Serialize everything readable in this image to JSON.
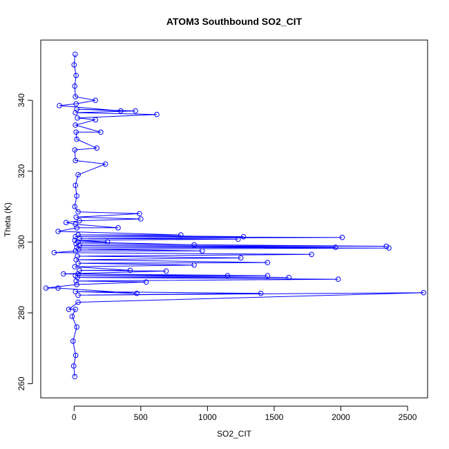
{
  "chart_data": {
    "type": "scatter",
    "title": "ATOM3 Southbound SO2_CIT",
    "xlabel": "SO2_CIT",
    "ylabel": "Theta (K)",
    "xlim": [
      -250,
      2650
    ],
    "ylim": [
      256,
      357
    ],
    "x_ticks": [
      0,
      500,
      1000,
      1500,
      2000,
      2500
    ],
    "y_ticks": [
      260,
      280,
      300,
      320,
      340
    ],
    "grid": false,
    "legend": "none",
    "series_color": "#0000ff",
    "marker": "open-circle",
    "connected": true,
    "points": [
      {
        "x": 5,
        "y": 262
      },
      {
        "x": -3,
        "y": 265
      },
      {
        "x": 12,
        "y": 268
      },
      {
        "x": -8,
        "y": 272
      },
      {
        "x": 20,
        "y": 276
      },
      {
        "x": -15,
        "y": 279
      },
      {
        "x": 10,
        "y": 281
      },
      {
        "x": -40,
        "y": 281
      },
      {
        "x": 30,
        "y": 283
      },
      {
        "x": 2620,
        "y": 285.7
      },
      {
        "x": 30,
        "y": 285
      },
      {
        "x": 1400,
        "y": 285.5
      },
      {
        "x": 10,
        "y": 286
      },
      {
        "x": 470,
        "y": 285.5
      },
      {
        "x": -120,
        "y": 287
      },
      {
        "x": -210,
        "y": 287
      },
      {
        "x": 20,
        "y": 288
      },
      {
        "x": 540,
        "y": 288.7
      },
      {
        "x": 15,
        "y": 289
      },
      {
        "x": 1980,
        "y": 289.5
      },
      {
        "x": 25,
        "y": 290
      },
      {
        "x": 1610,
        "y": 290
      },
      {
        "x": 10,
        "y": 290.5
      },
      {
        "x": 1450,
        "y": 290.5
      },
      {
        "x": 30,
        "y": 291
      },
      {
        "x": 1150,
        "y": 290.5
      },
      {
        "x": -80,
        "y": 291
      },
      {
        "x": 690,
        "y": 291.8
      },
      {
        "x": 40,
        "y": 292
      },
      {
        "x": 420,
        "y": 292
      },
      {
        "x": 5,
        "y": 293
      },
      {
        "x": 900,
        "y": 293.5
      },
      {
        "x": 30,
        "y": 294
      },
      {
        "x": 1450,
        "y": 294.2
      },
      {
        "x": 15,
        "y": 295
      },
      {
        "x": 1250,
        "y": 295.5
      },
      {
        "x": 25,
        "y": 296
      },
      {
        "x": 1780,
        "y": 296.5
      },
      {
        "x": -150,
        "y": 297
      },
      {
        "x": 10,
        "y": 297.5
      },
      {
        "x": 960,
        "y": 297.5
      },
      {
        "x": 35,
        "y": 298
      },
      {
        "x": 2360,
        "y": 298.3
      },
      {
        "x": 20,
        "y": 298.5
      },
      {
        "x": 1960,
        "y": 298.5
      },
      {
        "x": 40,
        "y": 299
      },
      {
        "x": 2340,
        "y": 298.8
      },
      {
        "x": 15,
        "y": 299.5
      },
      {
        "x": 900,
        "y": 299.2
      },
      {
        "x": 30,
        "y": 300
      },
      {
        "x": 250,
        "y": 300
      },
      {
        "x": 5,
        "y": 300.5
      },
      {
        "x": 1230,
        "y": 300.8
      },
      {
        "x": 40,
        "y": 301
      },
      {
        "x": 2010,
        "y": 301.3
      },
      {
        "x": 10,
        "y": 301.5
      },
      {
        "x": 1270,
        "y": 301.5
      },
      {
        "x": 30,
        "y": 302
      },
      {
        "x": 800,
        "y": 302
      },
      {
        "x": -120,
        "y": 303
      },
      {
        "x": 20,
        "y": 304
      },
      {
        "x": 330,
        "y": 304
      },
      {
        "x": 10,
        "y": 305
      },
      {
        "x": -60,
        "y": 305.5
      },
      {
        "x": 40,
        "y": 306
      },
      {
        "x": 500,
        "y": 306.5
      },
      {
        "x": 15,
        "y": 307
      },
      {
        "x": 490,
        "y": 308
      },
      {
        "x": 30,
        "y": 308.5
      },
      {
        "x": 5,
        "y": 310
      },
      {
        "x": 20,
        "y": 313
      },
      {
        "x": 10,
        "y": 316
      },
      {
        "x": 30,
        "y": 319
      },
      {
        "x": 235,
        "y": 322
      },
      {
        "x": 10,
        "y": 323
      },
      {
        "x": 5,
        "y": 326
      },
      {
        "x": 170,
        "y": 326.5
      },
      {
        "x": 20,
        "y": 329
      },
      {
        "x": 15,
        "y": 331
      },
      {
        "x": 200,
        "y": 331
      },
      {
        "x": 10,
        "y": 333
      },
      {
        "x": 160,
        "y": 334.5
      },
      {
        "x": 25,
        "y": 335
      },
      {
        "x": 620,
        "y": 336
      },
      {
        "x": 10,
        "y": 336.5
      },
      {
        "x": 460,
        "y": 337
      },
      {
        "x": 20,
        "y": 337.5
      },
      {
        "x": 350,
        "y": 337
      },
      {
        "x": -110,
        "y": 338.5
      },
      {
        "x": 15,
        "y": 339
      },
      {
        "x": 160,
        "y": 340
      },
      {
        "x": 10,
        "y": 341
      },
      {
        "x": 5,
        "y": 344
      },
      {
        "x": 15,
        "y": 347
      },
      {
        "x": 0,
        "y": 350
      },
      {
        "x": 8,
        "y": 353
      }
    ]
  }
}
